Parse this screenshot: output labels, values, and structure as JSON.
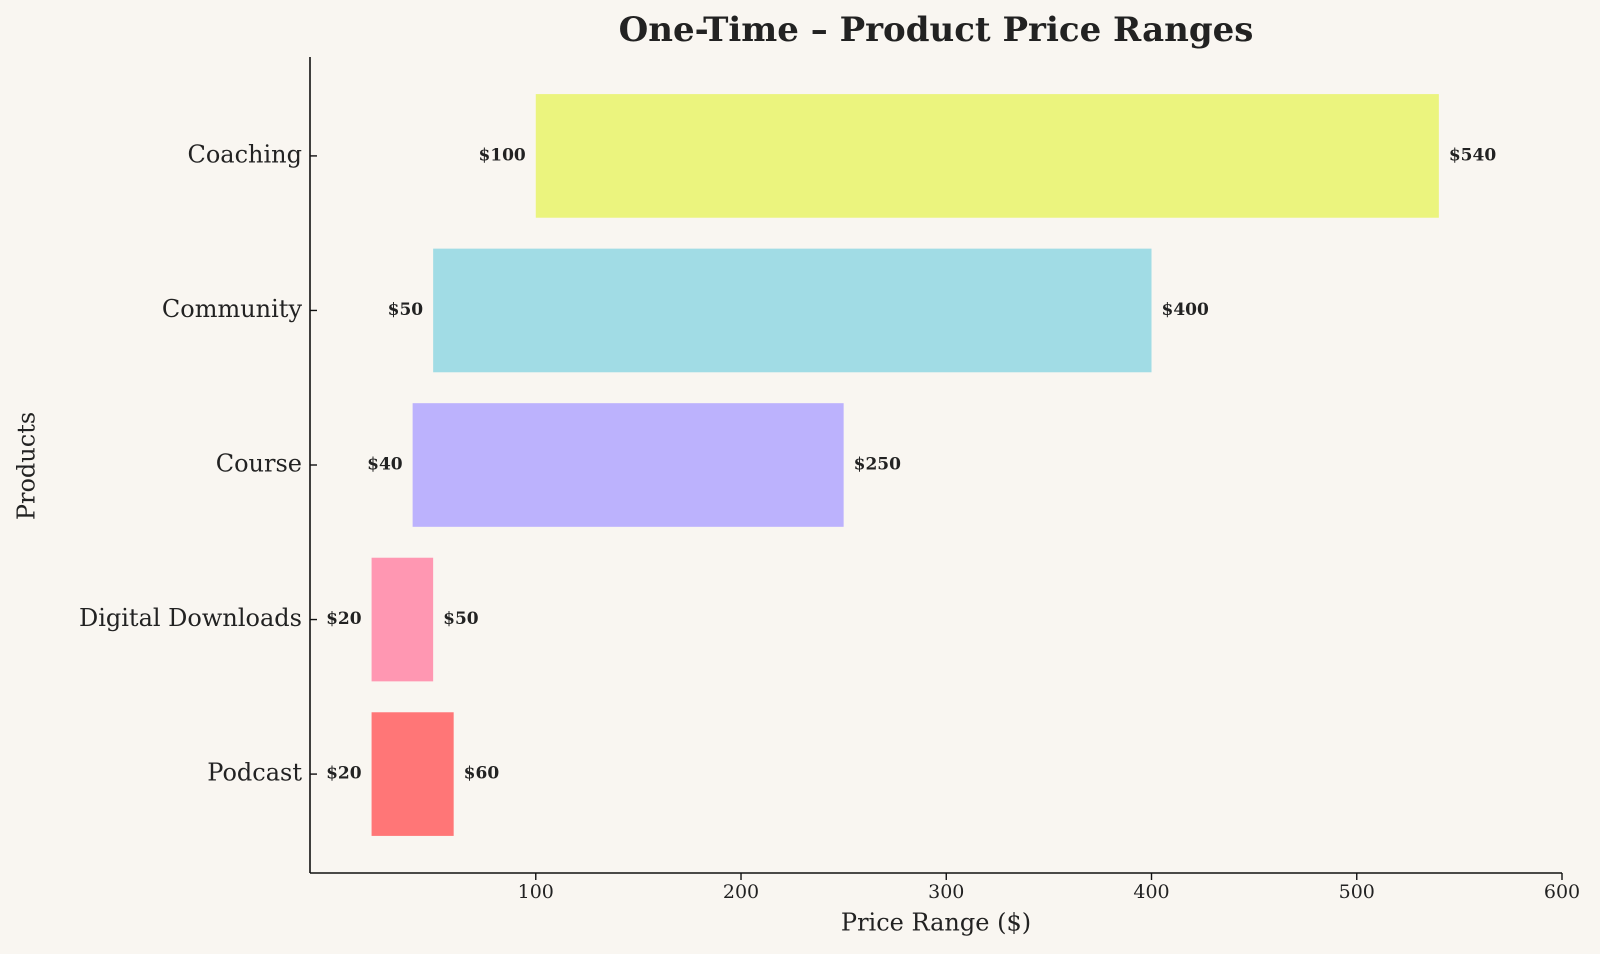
{
  "chart_data": {
    "type": "range-bar",
    "orientation": "horizontal",
    "title": "One-Time – Product Price Ranges",
    "x_label": "Price Range ($)",
    "y_label": "Products",
    "categories": [
      "Coaching",
      "Community",
      "Course",
      "Digital Downloads",
      "Podcast"
    ],
    "values": [
      [
        100,
        540
      ],
      [
        50,
        400
      ],
      [
        40,
        250
      ],
      [
        20,
        50
      ],
      [
        20,
        60
      ]
    ],
    "value_labels": [
      [
        "$100",
        "$540"
      ],
      [
        "$50",
        "$400"
      ],
      [
        "$40",
        "$250"
      ],
      [
        "$20",
        "$50"
      ],
      [
        "$20",
        "$60"
      ]
    ],
    "colors": [
      "#ebf47e",
      "#a1dce5",
      "#bcb2fd",
      "#ff97b2",
      "#ff7677"
    ],
    "xlim": [
      -10,
      600
    ],
    "xticks": [
      100,
      200,
      300,
      400,
      500,
      600
    ]
  }
}
